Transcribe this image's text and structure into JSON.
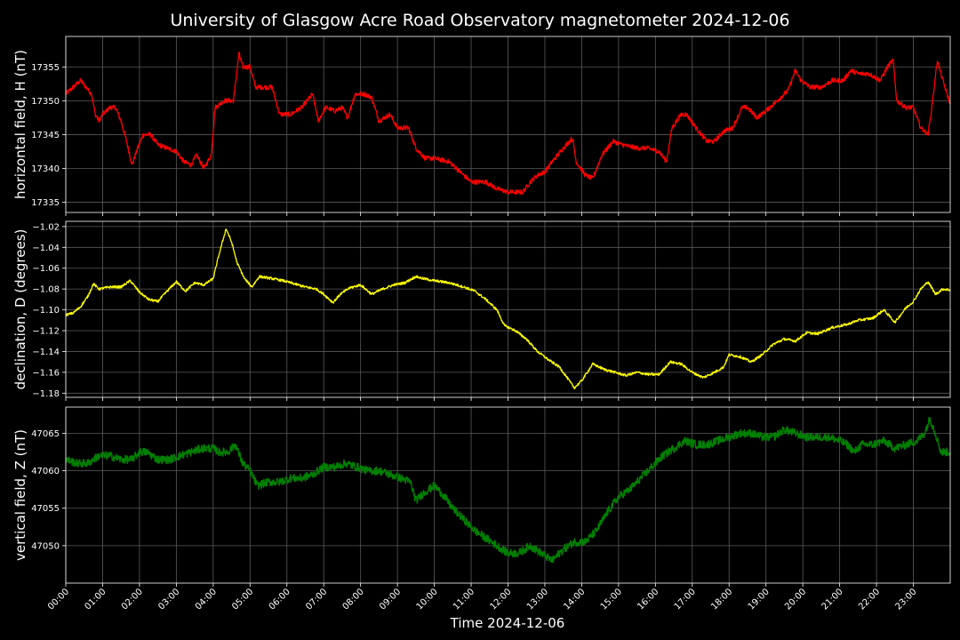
{
  "chart_data": {
    "type": "line",
    "title": "University of Glasgow Acre Road Observatory magnetometer 2024-12-06",
    "xlabel": "Time 2024-12-06",
    "x_unit": "hours",
    "x_ticks": [
      "00:00",
      "01:00",
      "02:00",
      "03:00",
      "04:00",
      "05:00",
      "06:00",
      "07:00",
      "08:00",
      "09:00",
      "10:00",
      "11:00",
      "12:00",
      "13:00",
      "14:00",
      "15:00",
      "16:00",
      "17:00",
      "18:00",
      "19:00",
      "20:00",
      "21:00",
      "22:00",
      "23:00"
    ],
    "xlim": [
      0,
      24
    ],
    "grid": true,
    "background": "#000000",
    "panels": [
      {
        "id": "H",
        "ylabel": "horizontal field, H (nT)",
        "color": "#ff0000",
        "ylim": [
          17333.5,
          17359.5
        ],
        "y_ticks": [
          17335,
          17340,
          17345,
          17350,
          17355
        ],
        "tick_format": "int",
        "noise": 0.35,
        "series": [
          [
            0.0,
            17351
          ],
          [
            0.2,
            17352
          ],
          [
            0.4,
            17353
          ],
          [
            0.55,
            17352
          ],
          [
            0.7,
            17351
          ],
          [
            0.8,
            17348
          ],
          [
            0.9,
            17347
          ],
          [
            1.0,
            17348
          ],
          [
            1.2,
            17349
          ],
          [
            1.35,
            17349
          ],
          [
            1.5,
            17347
          ],
          [
            1.65,
            17344
          ],
          [
            1.8,
            17340.5
          ],
          [
            1.95,
            17343
          ],
          [
            2.1,
            17345
          ],
          [
            2.3,
            17345
          ],
          [
            2.5,
            17343.5
          ],
          [
            2.75,
            17343
          ],
          [
            3.0,
            17342.5
          ],
          [
            3.2,
            17341
          ],
          [
            3.4,
            17340.5
          ],
          [
            3.55,
            17342
          ],
          [
            3.75,
            17340
          ],
          [
            3.95,
            17342
          ],
          [
            4.05,
            17349
          ],
          [
            4.3,
            17350
          ],
          [
            4.55,
            17350
          ],
          [
            4.7,
            17357
          ],
          [
            4.8,
            17355
          ],
          [
            5.0,
            17355
          ],
          [
            5.15,
            17352
          ],
          [
            5.4,
            17352
          ],
          [
            5.6,
            17352
          ],
          [
            5.8,
            17348
          ],
          [
            6.1,
            17348
          ],
          [
            6.4,
            17349
          ],
          [
            6.7,
            17351
          ],
          [
            6.85,
            17347
          ],
          [
            7.05,
            17349
          ],
          [
            7.3,
            17348.5
          ],
          [
            7.5,
            17349
          ],
          [
            7.65,
            17347.5
          ],
          [
            7.85,
            17351
          ],
          [
            8.1,
            17351
          ],
          [
            8.3,
            17350.5
          ],
          [
            8.5,
            17347
          ],
          [
            8.8,
            17348
          ],
          [
            9.0,
            17346
          ],
          [
            9.3,
            17346
          ],
          [
            9.5,
            17343
          ],
          [
            9.75,
            17341.5
          ],
          [
            10.0,
            17341.5
          ],
          [
            10.4,
            17341
          ],
          [
            10.7,
            17339.5
          ],
          [
            11.0,
            17338
          ],
          [
            11.4,
            17338
          ],
          [
            11.7,
            17337
          ],
          [
            12.0,
            17336.5
          ],
          [
            12.4,
            17336.5
          ],
          [
            12.6,
            17338
          ],
          [
            12.8,
            17339
          ],
          [
            13.0,
            17339.5
          ],
          [
            13.2,
            17341
          ],
          [
            13.5,
            17343
          ],
          [
            13.75,
            17344.5
          ],
          [
            13.85,
            17341
          ],
          [
            14.1,
            17339
          ],
          [
            14.3,
            17338.5
          ],
          [
            14.55,
            17342
          ],
          [
            14.85,
            17344
          ],
          [
            15.1,
            17343.5
          ],
          [
            15.5,
            17343
          ],
          [
            15.8,
            17343
          ],
          [
            16.1,
            17342.5
          ],
          [
            16.3,
            17341
          ],
          [
            16.45,
            17346
          ],
          [
            16.7,
            17348
          ],
          [
            16.85,
            17348
          ],
          [
            17.1,
            17346
          ],
          [
            17.4,
            17344
          ],
          [
            17.6,
            17344
          ],
          [
            17.85,
            17345.5
          ],
          [
            18.1,
            17346
          ],
          [
            18.35,
            17349
          ],
          [
            18.5,
            17349
          ],
          [
            18.75,
            17347.5
          ],
          [
            19.0,
            17348.5
          ],
          [
            19.3,
            17350
          ],
          [
            19.6,
            17351.5
          ],
          [
            19.8,
            17354.5
          ],
          [
            19.95,
            17353
          ],
          [
            20.2,
            17352
          ],
          [
            20.5,
            17352
          ],
          [
            20.8,
            17353
          ],
          [
            21.1,
            17353
          ],
          [
            21.3,
            17354.5
          ],
          [
            21.5,
            17354
          ],
          [
            21.8,
            17354
          ],
          [
            22.1,
            17353
          ],
          [
            22.3,
            17355
          ],
          [
            22.45,
            17356
          ],
          [
            22.55,
            17350
          ],
          [
            22.8,
            17349
          ],
          [
            23.0,
            17349
          ],
          [
            23.2,
            17346
          ],
          [
            23.4,
            17345
          ],
          [
            23.5,
            17349
          ],
          [
            23.65,
            17356
          ],
          [
            23.8,
            17353
          ],
          [
            24.0,
            17349.5
          ]
        ]
      },
      {
        "id": "D",
        "ylabel": "declination, D (degrees)",
        "color": "#ffff00",
        "ylim": [
          -1.184,
          -1.015
        ],
        "y_ticks": [
          -1.18,
          -1.16,
          -1.14,
          -1.12,
          -1.1,
          -1.08,
          -1.06,
          -1.04,
          -1.02
        ],
        "tick_format": "dec2",
        "noise": 0.0012,
        "series": [
          [
            0.0,
            -1.105
          ],
          [
            0.2,
            -1.103
          ],
          [
            0.4,
            -1.097
          ],
          [
            0.6,
            -1.087
          ],
          [
            0.75,
            -1.075
          ],
          [
            0.9,
            -1.08
          ],
          [
            1.2,
            -1.078
          ],
          [
            1.5,
            -1.078
          ],
          [
            1.75,
            -1.072
          ],
          [
            2.0,
            -1.083
          ],
          [
            2.25,
            -1.09
          ],
          [
            2.5,
            -1.092
          ],
          [
            2.75,
            -1.082
          ],
          [
            3.0,
            -1.073
          ],
          [
            3.25,
            -1.082
          ],
          [
            3.5,
            -1.074
          ],
          [
            3.75,
            -1.076
          ],
          [
            4.0,
            -1.07
          ],
          [
            4.15,
            -1.048
          ],
          [
            4.35,
            -1.022
          ],
          [
            4.5,
            -1.035
          ],
          [
            4.65,
            -1.055
          ],
          [
            4.85,
            -1.07
          ],
          [
            5.05,
            -1.078
          ],
          [
            5.25,
            -1.068
          ],
          [
            5.6,
            -1.07
          ],
          [
            5.9,
            -1.072
          ],
          [
            6.2,
            -1.075
          ],
          [
            6.5,
            -1.078
          ],
          [
            6.8,
            -1.08
          ],
          [
            7.0,
            -1.085
          ],
          [
            7.25,
            -1.093
          ],
          [
            7.45,
            -1.085
          ],
          [
            7.7,
            -1.079
          ],
          [
            8.0,
            -1.076
          ],
          [
            8.3,
            -1.085
          ],
          [
            8.6,
            -1.08
          ],
          [
            8.9,
            -1.076
          ],
          [
            9.2,
            -1.074
          ],
          [
            9.5,
            -1.068
          ],
          [
            9.7,
            -1.07
          ],
          [
            10.0,
            -1.072
          ],
          [
            10.4,
            -1.074
          ],
          [
            10.8,
            -1.078
          ],
          [
            11.1,
            -1.082
          ],
          [
            11.4,
            -1.09
          ],
          [
            11.7,
            -1.1
          ],
          [
            11.9,
            -1.115
          ],
          [
            12.2,
            -1.12
          ],
          [
            12.5,
            -1.128
          ],
          [
            12.8,
            -1.14
          ],
          [
            13.1,
            -1.148
          ],
          [
            13.4,
            -1.155
          ],
          [
            13.6,
            -1.165
          ],
          [
            13.8,
            -1.175
          ],
          [
            14.0,
            -1.168
          ],
          [
            14.3,
            -1.152
          ],
          [
            14.6,
            -1.157
          ],
          [
            14.9,
            -1.16
          ],
          [
            15.2,
            -1.163
          ],
          [
            15.5,
            -1.16
          ],
          [
            15.8,
            -1.162
          ],
          [
            16.1,
            -1.162
          ],
          [
            16.4,
            -1.15
          ],
          [
            16.7,
            -1.152
          ],
          [
            17.0,
            -1.16
          ],
          [
            17.3,
            -1.165
          ],
          [
            17.6,
            -1.16
          ],
          [
            17.85,
            -1.155
          ],
          [
            18.0,
            -1.143
          ],
          [
            18.3,
            -1.145
          ],
          [
            18.6,
            -1.15
          ],
          [
            18.9,
            -1.143
          ],
          [
            19.2,
            -1.133
          ],
          [
            19.5,
            -1.128
          ],
          [
            19.8,
            -1.13
          ],
          [
            20.1,
            -1.122
          ],
          [
            20.4,
            -1.123
          ],
          [
            20.8,
            -1.117
          ],
          [
            21.2,
            -1.114
          ],
          [
            21.5,
            -1.11
          ],
          [
            21.9,
            -1.108
          ],
          [
            22.2,
            -1.1
          ],
          [
            22.5,
            -1.112
          ],
          [
            22.8,
            -1.098
          ],
          [
            23.0,
            -1.092
          ],
          [
            23.2,
            -1.08
          ],
          [
            23.4,
            -1.073
          ],
          [
            23.6,
            -1.085
          ],
          [
            23.8,
            -1.08
          ],
          [
            24.0,
            -1.081
          ]
        ]
      },
      {
        "id": "Z",
        "ylabel": "vertical field, Z (nT)",
        "color": "#008000",
        "ylim": [
          47045,
          47068.5
        ],
        "y_ticks": [
          47050,
          47055,
          47060,
          47065
        ],
        "tick_format": "int",
        "noise": 0.55,
        "series": [
          [
            0.0,
            47061.5
          ],
          [
            0.3,
            47061
          ],
          [
            0.6,
            47061
          ],
          [
            0.9,
            47062
          ],
          [
            1.2,
            47062
          ],
          [
            1.5,
            47061.5
          ],
          [
            1.8,
            47061.5
          ],
          [
            2.0,
            47062.5
          ],
          [
            2.2,
            47062.5
          ],
          [
            2.5,
            47061.5
          ],
          [
            2.8,
            47061.5
          ],
          [
            3.1,
            47062
          ],
          [
            3.4,
            47062.5
          ],
          [
            3.7,
            47063
          ],
          [
            4.0,
            47063
          ],
          [
            4.15,
            47062.5
          ],
          [
            4.4,
            47062.5
          ],
          [
            4.6,
            47063.5
          ],
          [
            4.8,
            47061
          ],
          [
            5.0,
            47060
          ],
          [
            5.2,
            47058
          ],
          [
            5.5,
            47058.5
          ],
          [
            5.8,
            47058.5
          ],
          [
            6.1,
            47059
          ],
          [
            6.4,
            47059
          ],
          [
            6.7,
            47059.5
          ],
          [
            7.0,
            47060.5
          ],
          [
            7.3,
            47060.5
          ],
          [
            7.6,
            47061
          ],
          [
            7.9,
            47060.5
          ],
          [
            8.2,
            47060
          ],
          [
            8.5,
            47060
          ],
          [
            8.8,
            47059.5
          ],
          [
            9.1,
            47059
          ],
          [
            9.35,
            47058.5
          ],
          [
            9.5,
            47056
          ],
          [
            9.7,
            47057
          ],
          [
            10.0,
            47058
          ],
          [
            10.2,
            47057
          ],
          [
            10.5,
            47055
          ],
          [
            10.8,
            47053.5
          ],
          [
            11.1,
            47052
          ],
          [
            11.4,
            47051
          ],
          [
            11.7,
            47050
          ],
          [
            12.0,
            47049
          ],
          [
            12.3,
            47049
          ],
          [
            12.6,
            47050
          ],
          [
            12.9,
            47049
          ],
          [
            13.2,
            47048
          ],
          [
            13.5,
            47049.5
          ],
          [
            13.8,
            47050.5
          ],
          [
            14.1,
            47050.5
          ],
          [
            14.4,
            47052
          ],
          [
            14.7,
            47054.5
          ],
          [
            15.0,
            47056.5
          ],
          [
            15.3,
            47057.5
          ],
          [
            15.6,
            47059
          ],
          [
            15.9,
            47060.5
          ],
          [
            16.2,
            47062
          ],
          [
            16.5,
            47063
          ],
          [
            16.8,
            47064
          ],
          [
            17.1,
            47063.5
          ],
          [
            17.4,
            47063.5
          ],
          [
            17.7,
            47064
          ],
          [
            18.0,
            47064.5
          ],
          [
            18.3,
            47065
          ],
          [
            18.6,
            47065
          ],
          [
            18.9,
            47064.5
          ],
          [
            19.2,
            47064.5
          ],
          [
            19.5,
            47065.5
          ],
          [
            19.8,
            47065
          ],
          [
            20.1,
            47064.5
          ],
          [
            20.4,
            47064.5
          ],
          [
            20.7,
            47064.5
          ],
          [
            21.0,
            47064
          ],
          [
            21.2,
            47063.5
          ],
          [
            21.4,
            47062.5
          ],
          [
            21.6,
            47063.5
          ],
          [
            21.9,
            47063.5
          ],
          [
            22.2,
            47064
          ],
          [
            22.5,
            47063
          ],
          [
            22.8,
            47063.5
          ],
          [
            23.1,
            47064
          ],
          [
            23.3,
            47065
          ],
          [
            23.45,
            47067
          ],
          [
            23.6,
            47065
          ],
          [
            23.75,
            47062.5
          ],
          [
            24.0,
            47062.5
          ]
        ]
      }
    ]
  }
}
